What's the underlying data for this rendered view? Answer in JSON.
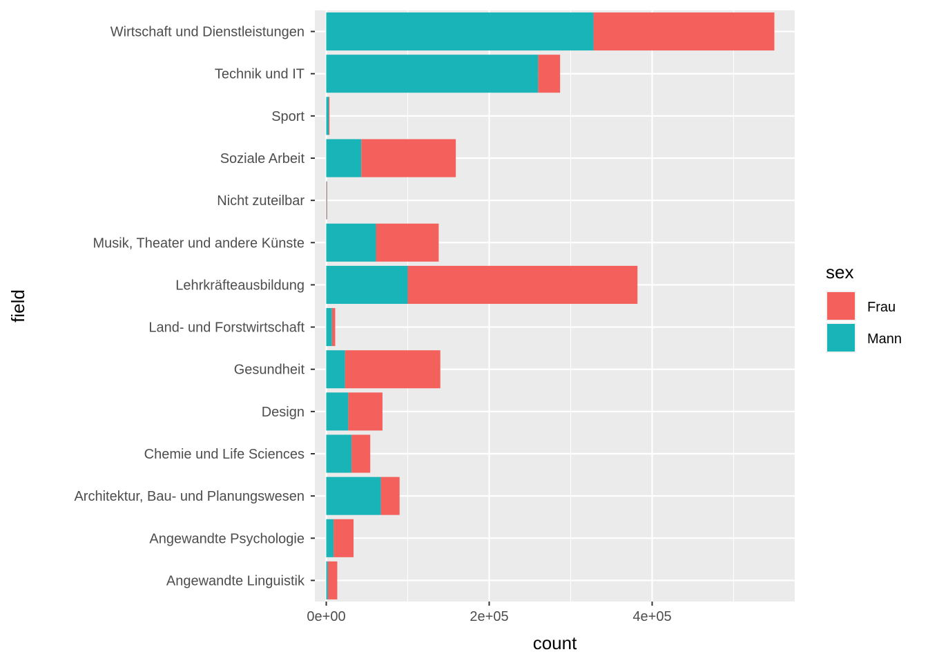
{
  "chart_data": {
    "type": "bar",
    "orientation": "horizontal",
    "stacked": true,
    "xlabel": "count",
    "ylabel": "field",
    "xlim": [
      -14000,
      575000
    ],
    "x_ticks": [
      {
        "value": 0,
        "label": "0e+00"
      },
      {
        "value": 200000,
        "label": "2e+05"
      },
      {
        "value": 400000,
        "label": "4e+05"
      }
    ],
    "grid": true,
    "categories": [
      "Angewandte Linguistik",
      "Angewandte Psychologie",
      "Architektur, Bau- und Planungswesen",
      "Chemie und Life Sciences",
      "Design",
      "Gesundheit",
      "Land- und Forstwirtschaft",
      "Lehrkräfteausbildung",
      "Musik, Theater und andere Künste",
      "Nicht zuteilbar",
      "Soziale Arbeit",
      "Sport",
      "Technik und IT",
      "Wirtschaft und Dienstleistungen"
    ],
    "series": [
      {
        "name": "Mann",
        "color": "#19B4B8",
        "values": [
          2000,
          9000,
          67000,
          31000,
          27000,
          23000,
          7000,
          100000,
          61000,
          500,
          43000,
          3000,
          260000,
          328000
        ]
      },
      {
        "name": "Frau",
        "color": "#F4605B",
        "values": [
          11500,
          24500,
          23000,
          23000,
          42000,
          117000,
          4000,
          282000,
          77000,
          500,
          116000,
          1000,
          27000,
          222000
        ]
      }
    ],
    "legend": {
      "title": "sex",
      "placement": "right",
      "entries": [
        "Frau",
        "Mann"
      ]
    }
  }
}
